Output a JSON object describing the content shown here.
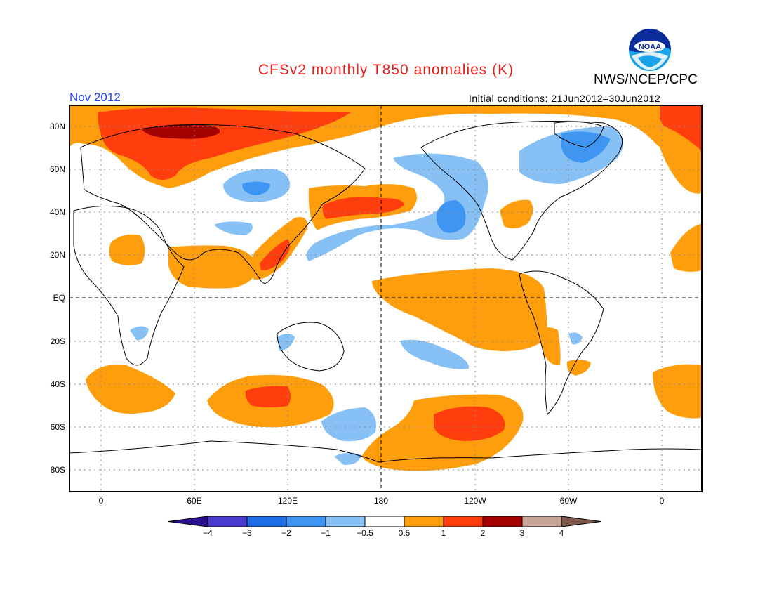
{
  "title": "CFSv2 monthly T850 anomalies (K)",
  "agency": "NWS/NCEP/CPC",
  "logo_text": "NOAA",
  "valid_month": "Nov 2012",
  "initial_conditions": "Initial conditions: 21Jun2012–30Jun2012",
  "lat_labels": [
    "80N",
    "60N",
    "40N",
    "20N",
    "EQ",
    "20S",
    "40S",
    "60S",
    "80S"
  ],
  "lon_labels": [
    "0",
    "60E",
    "120E",
    "180",
    "120W",
    "60W",
    "0"
  ],
  "colorbar": {
    "tick_labels": [
      "−4",
      "−3",
      "−2",
      "−1",
      "−0.5",
      "0.5",
      "1",
      "2",
      "3",
      "4"
    ],
    "colors": [
      "#2a0f8c",
      "#4a3ccf",
      "#1f6ee8",
      "#3f95f2",
      "#86c0f5",
      "#ffffff",
      "#ff9e0d",
      "#ff3d0d",
      "#a30000",
      "#c8a596",
      "#7b5548"
    ]
  },
  "colors": {
    "title": "#e8211f",
    "month": "#1f3fff",
    "light_blue": "#8cc2f4",
    "medium_blue": "#3f95f2",
    "orange": "#ff9e0d",
    "red_orange": "#ff3d0d",
    "dark_red": "#a30000"
  }
}
